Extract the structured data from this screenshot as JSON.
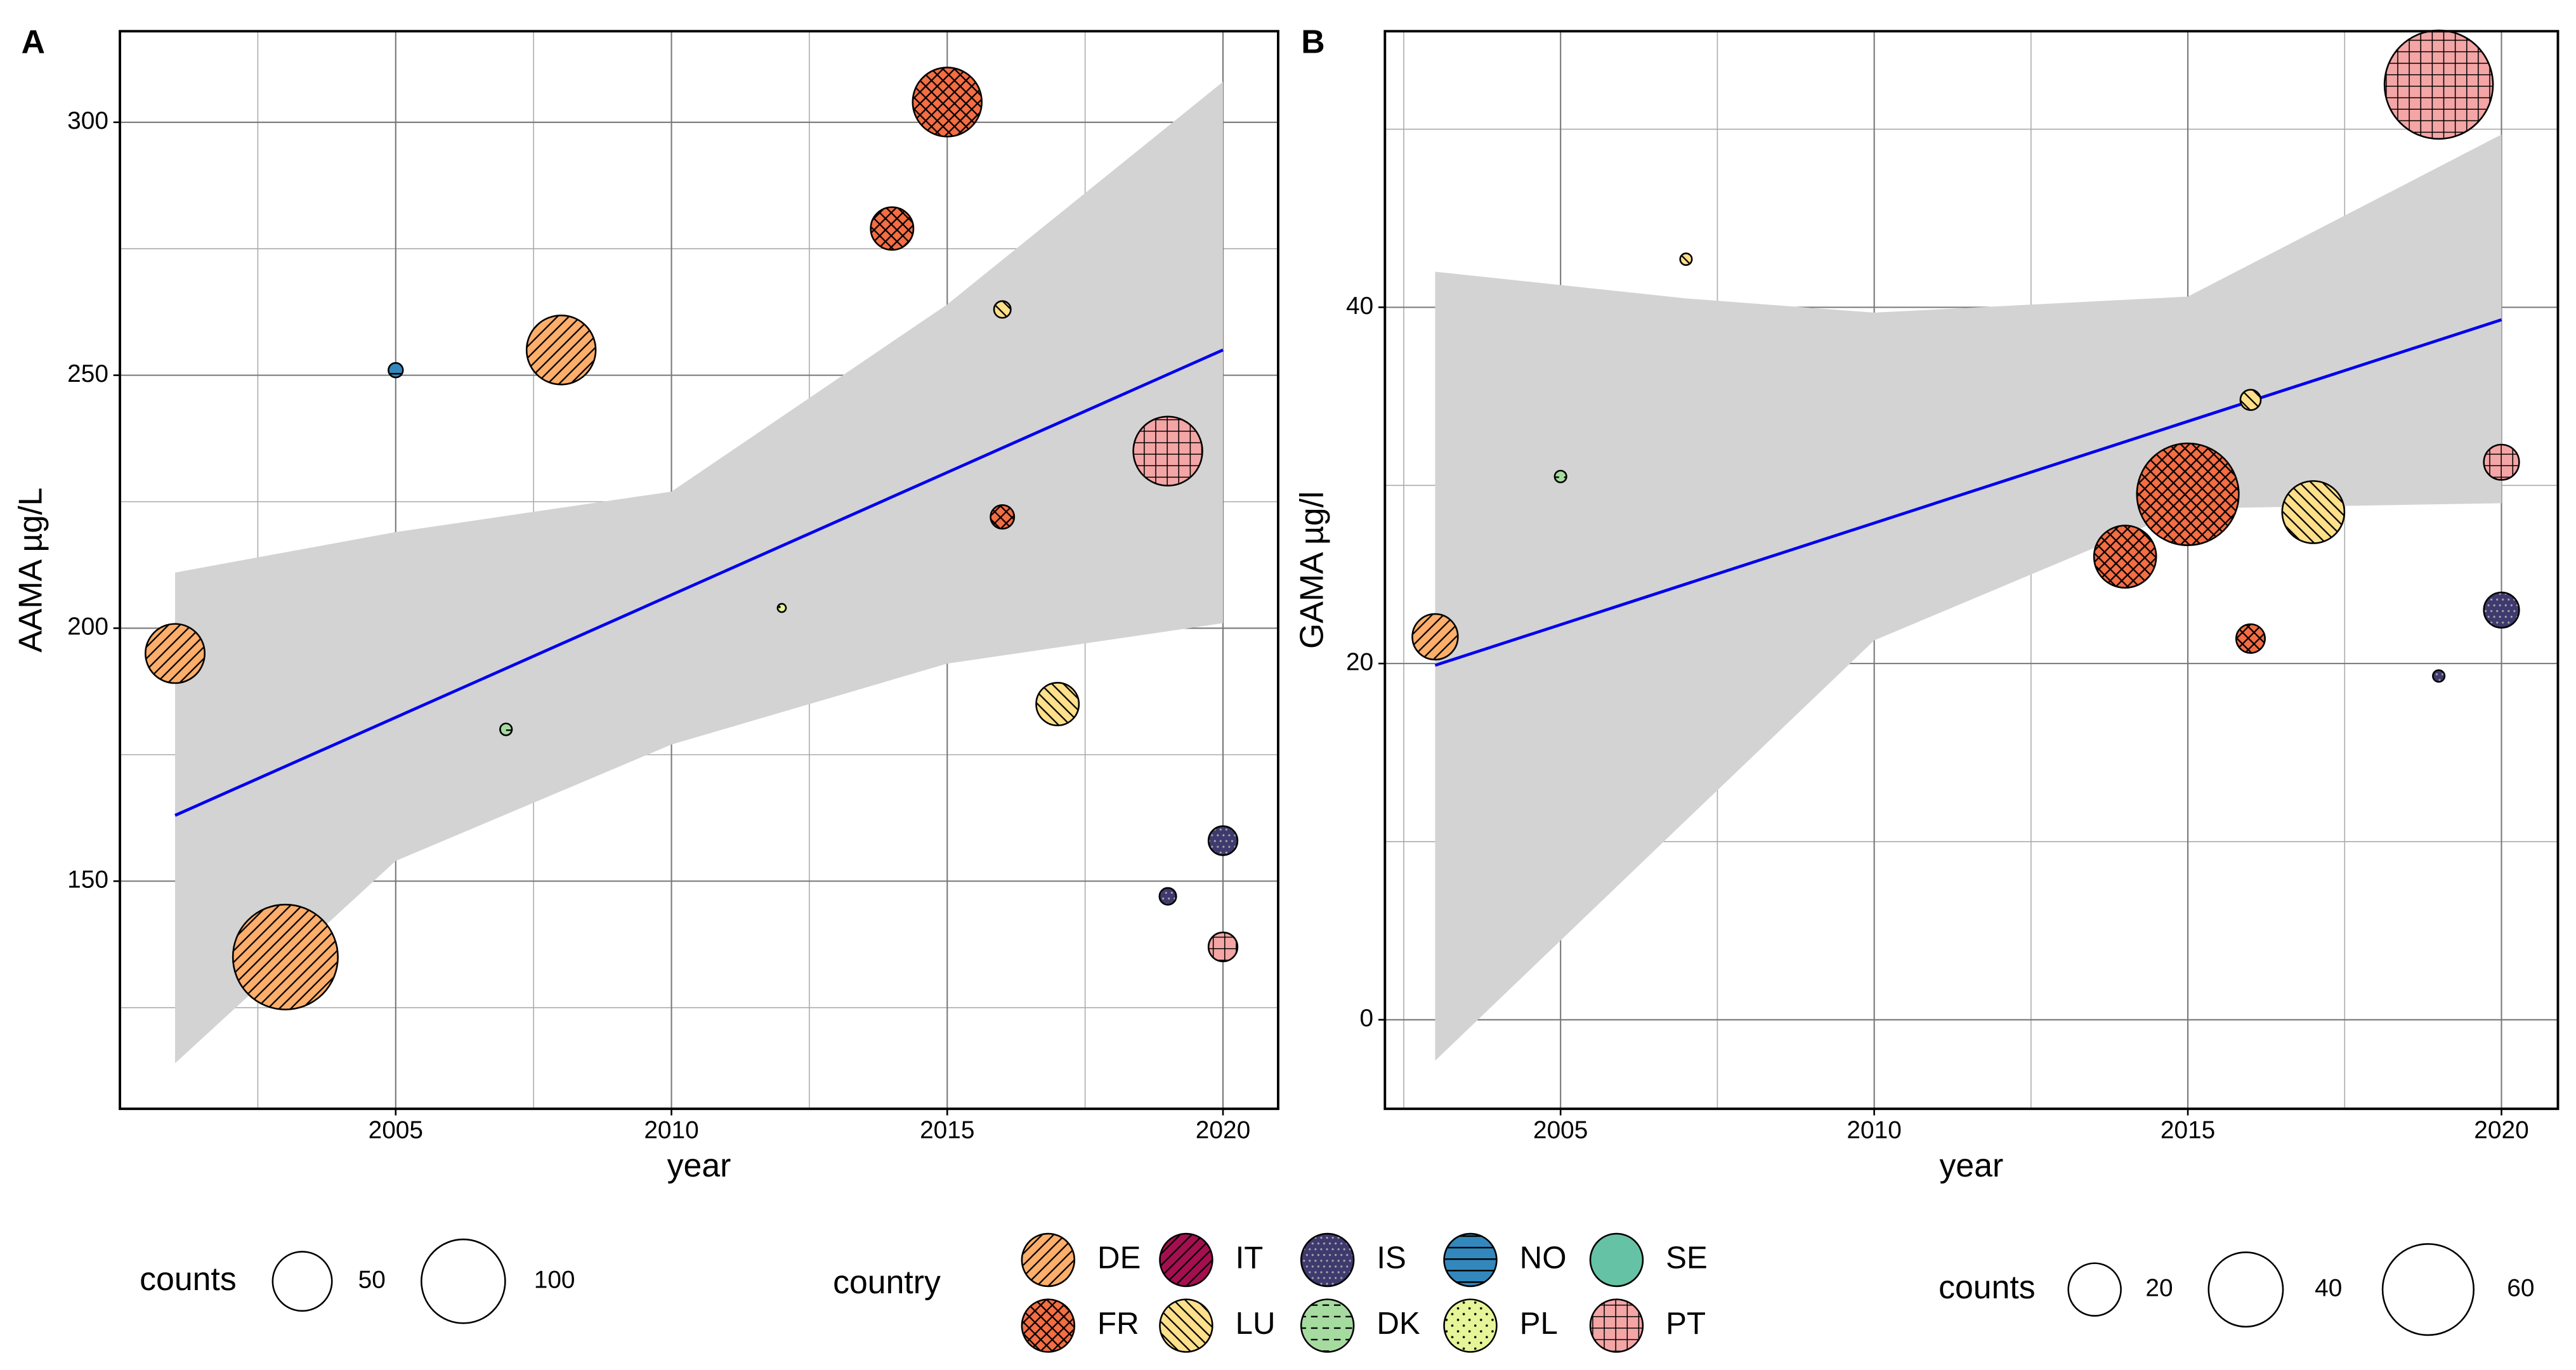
{
  "chart_data": [
    {
      "type": "bubble",
      "label": "A",
      "xlabel": "year",
      "ylabel": "AAMA µg/L",
      "xlim": [
        2000,
        2021
      ],
      "ylim": [
        105,
        318
      ],
      "xticks": [
        2005,
        2010,
        2015,
        2020
      ],
      "yticks": [
        150,
        200,
        250,
        300
      ],
      "xminor": [
        2002.5,
        2007.5,
        2012.5,
        2017.5
      ],
      "yminor": [
        125,
        175,
        225,
        275
      ],
      "grid": true,
      "x": [
        2001,
        2003,
        2005,
        2007,
        2008,
        2012,
        2014,
        2015,
        2016,
        2016,
        2017,
        2019,
        2019,
        2020,
        2020
      ],
      "values": [
        195,
        135,
        251,
        180,
        255,
        204,
        279,
        304,
        263,
        222,
        185,
        235,
        147,
        158,
        137
      ],
      "sizes": [
        50,
        157,
        3,
        2,
        68,
        1,
        26,
        68,
        4,
        8,
        26,
        68,
        4,
        12,
        12
      ],
      "groups": [
        "DE",
        "DE",
        "NO",
        "DK",
        "DE",
        "PL",
        "FR",
        "FR",
        "LU",
        "FR",
        "LU",
        "PT",
        "IS",
        "IS",
        "PT"
      ],
      "fit": {
        "color": "#0000ee",
        "x": [
          2001,
          2020
        ],
        "y": [
          163,
          255
        ]
      },
      "band": {
        "color": "#d3d3d3",
        "x": [
          2001,
          2005,
          2010,
          2015,
          2020
        ],
        "lower": [
          114,
          154,
          177,
          193,
          201
        ],
        "upper": [
          211,
          219,
          227,
          264,
          308
        ]
      },
      "size_legend": {
        "title": "counts",
        "values": [
          50,
          100
        ]
      }
    },
    {
      "type": "bubble",
      "label": "B",
      "xlabel": "year",
      "ylabel": "GAMA µg/l",
      "xlim": [
        2002.2,
        2020.9
      ],
      "ylim": [
        -5,
        55.5
      ],
      "xticks": [
        2005,
        2010,
        2015,
        2020
      ],
      "yticks": [
        0,
        20,
        40
      ],
      "xminor": [
        2002.5,
        2007.5,
        2012.5,
        2017.5
      ],
      "yminor": [
        10,
        30,
        50
      ],
      "grid": true,
      "x": [
        2003,
        2005,
        2007,
        2014,
        2015,
        2016,
        2016,
        2017,
        2019,
        2019,
        2020,
        2020
      ],
      "values": [
        21.5,
        30.5,
        42.7,
        26,
        29.5,
        34.8,
        21.4,
        28.5,
        52.5,
        19.3,
        31.3,
        23
      ],
      "sizes": [
        15,
        1,
        1,
        28,
        75,
        3,
        6,
        28,
        85,
        1,
        9,
        9
      ],
      "groups": [
        "DE",
        "DK",
        "LU",
        "FR",
        "FR",
        "LU",
        "FR",
        "LU",
        "PT",
        "IS",
        "PT",
        "IS"
      ],
      "fit": {
        "color": "#0000ee",
        "x": [
          2003,
          2020
        ],
        "y": [
          19.9,
          39.3
        ]
      },
      "band": {
        "color": "#d3d3d3",
        "x": [
          2003,
          2007,
          2010,
          2015,
          2020
        ],
        "lower": [
          -2.3,
          11.2,
          21.3,
          28.7,
          29
        ],
        "upper": [
          42,
          40.5,
          39.7,
          40.6,
          49.7
        ]
      },
      "size_legend": {
        "title": "counts",
        "values": [
          20,
          40,
          60
        ]
      }
    }
  ],
  "legend": {
    "title": "country",
    "countries": [
      {
        "name": "DE",
        "color": "#fdae6b",
        "pattern": "stripe"
      },
      {
        "name": "FR",
        "color": "#f46d43",
        "pattern": "crosshatch"
      },
      {
        "name": "IT",
        "color": "#a50f4f",
        "pattern": "stripe"
      },
      {
        "name": "LU",
        "color": "#fee08b",
        "pattern": "stripe-back"
      },
      {
        "name": "IS",
        "color": "#3f3a6e",
        "pattern": "dense-dots"
      },
      {
        "name": "DK",
        "color": "#a6dba0",
        "pattern": "dash"
      },
      {
        "name": "NO",
        "color": "#3288bd",
        "pattern": "hline"
      },
      {
        "name": "PL",
        "color": "#e6f598",
        "pattern": "dots"
      },
      {
        "name": "SE",
        "color": "#66c2a5",
        "pattern": "none"
      },
      {
        "name": "PT",
        "color": "#f4a5a5",
        "pattern": "grid"
      }
    ]
  }
}
